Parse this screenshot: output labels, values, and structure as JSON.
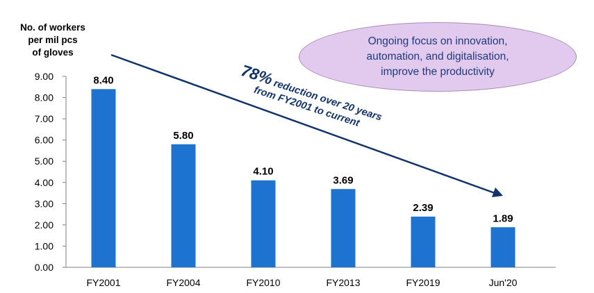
{
  "chart_data": {
    "type": "bar",
    "ylabel_lines": [
      "No. of workers",
      "per mil pcs",
      "of gloves"
    ],
    "categories": [
      "FY2001",
      "FY2004",
      "FY2010",
      "FY2013",
      "FY2019",
      "Jun'20"
    ],
    "values": [
      8.4,
      5.8,
      4.1,
      3.69,
      2.39,
      1.89
    ],
    "data_labels": [
      "8.40",
      "5.80",
      "4.10",
      "3.69",
      "2.39",
      "1.89"
    ],
    "ylim": [
      0,
      9
    ],
    "yticks": [
      "0.00",
      "1.00",
      "2.00",
      "3.00",
      "4.00",
      "5.00",
      "6.00",
      "7.00",
      "8.00",
      "9.00"
    ],
    "grid": false,
    "bar_color": "#1f73d0",
    "annotation": {
      "percent": "78%",
      "line1_rest": " reduction over 20 years",
      "line2": "from FY2001 to current",
      "color": "#123369"
    },
    "callout": {
      "lines": [
        "Ongoing focus on innovation,",
        "automation, and digitalisation,",
        "improve the productivity"
      ],
      "fill_color": "#e2c9ee",
      "text_color": "#1f3a7a"
    }
  }
}
